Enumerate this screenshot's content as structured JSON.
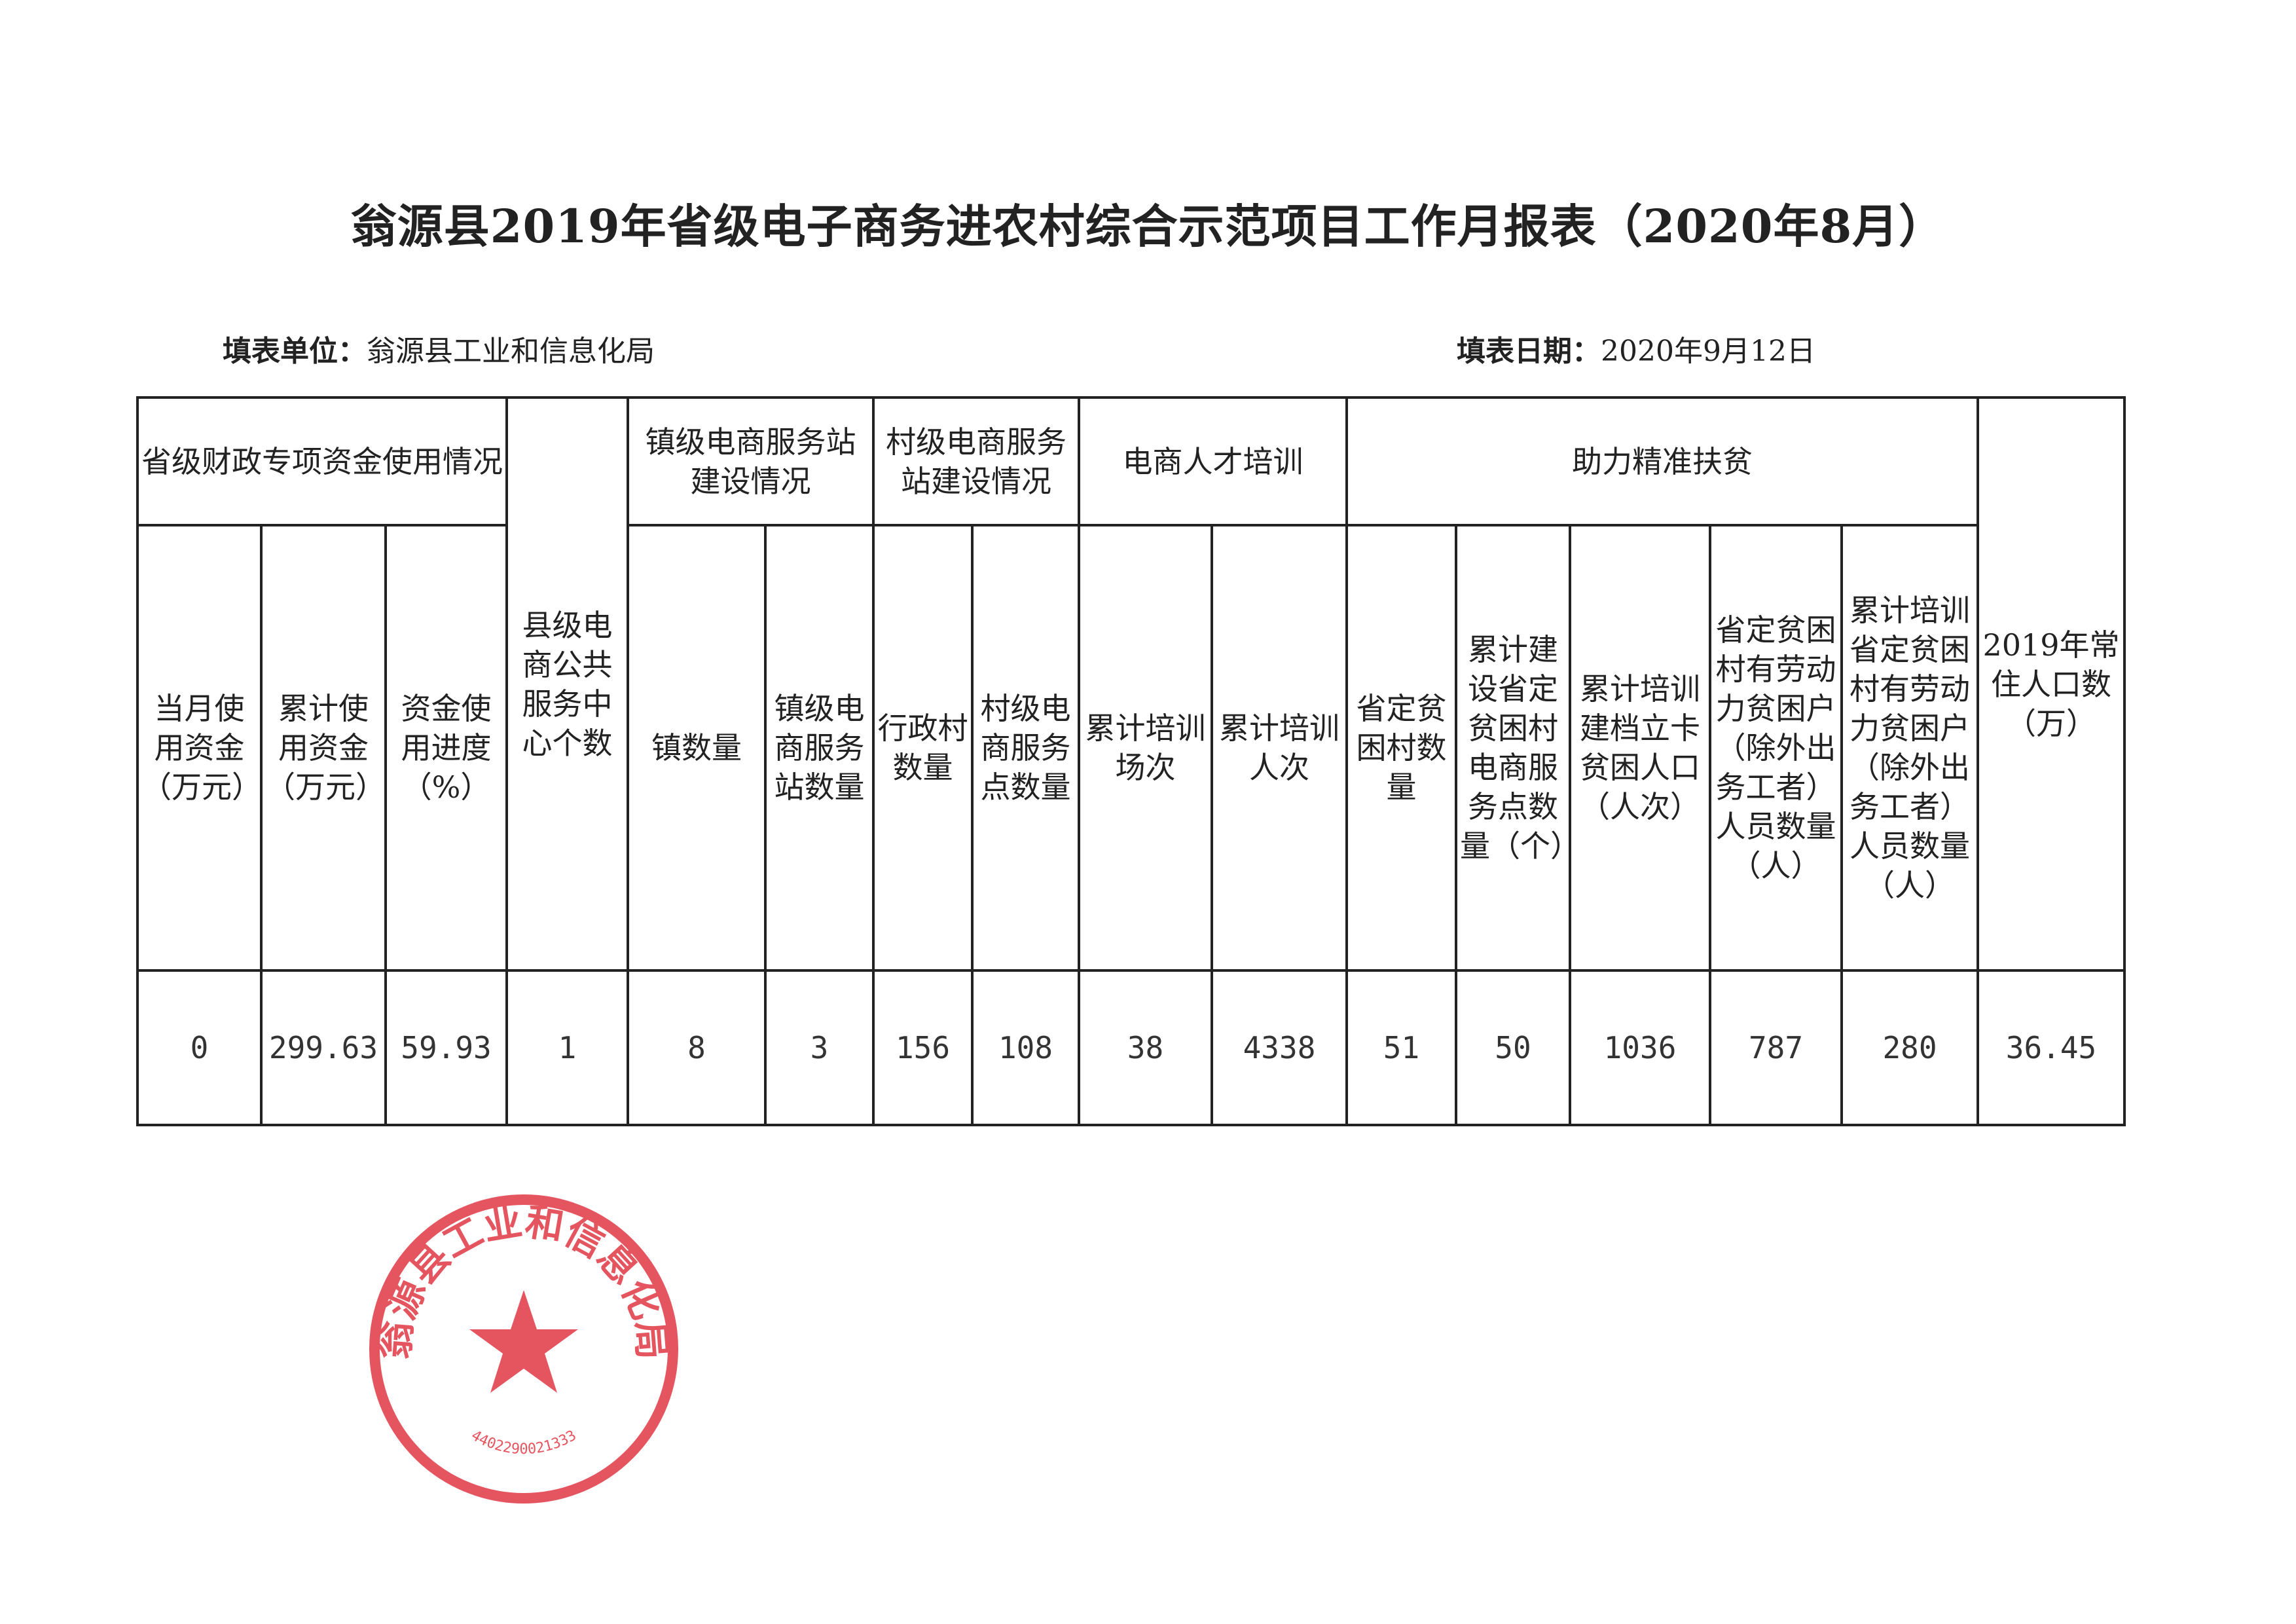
{
  "title": "翁源县2019年省级电子商务进农村综合示范项目工作月报表（2020年8月）",
  "fill_unit": {
    "label": "填表单位：",
    "value": "翁源县工业和信息化局"
  },
  "fill_date": {
    "label": "填表日期：",
    "value": "2020年9月12日"
  },
  "stamp": {
    "text": "翁源县工业和信息化局",
    "number": "4402290021333",
    "color": "#e0303c"
  },
  "table": {
    "groups": [
      "省级财政专项资金使用情况",
      "县级电商公共服务中心个数",
      "镇级电商服务站建设情况",
      "村级电商服务站建设情况",
      "电商人才培训",
      "助力精准扶贫",
      "2019年常住人口数（万）"
    ],
    "columns": [
      "当月使用资金（万元）",
      "累计使用资金（万元）",
      "资金使用进度（%）",
      "镇数量",
      "镇级电商服务站数量",
      "行政村数量",
      "村级电商服务点数量",
      "累计培训场次",
      "累计培训人次",
      "省定贫困村数量",
      "累计建设省定贫困村电商服务点数量（个）",
      "累计培训建档立卡贫困人口（人次）",
      "省定贫困村有劳动力贫困户（除外出务工者）人员数量（人）",
      "累计培训省定贫困村有劳动力贫困户（除外出务工者）人员数量（人）"
    ],
    "values": [
      "0",
      "299.63",
      "59.93",
      "1",
      "8",
      "3",
      "156",
      "108",
      "38",
      "4338",
      "51",
      "50",
      "1036",
      "787",
      "280",
      "36.45"
    ]
  }
}
